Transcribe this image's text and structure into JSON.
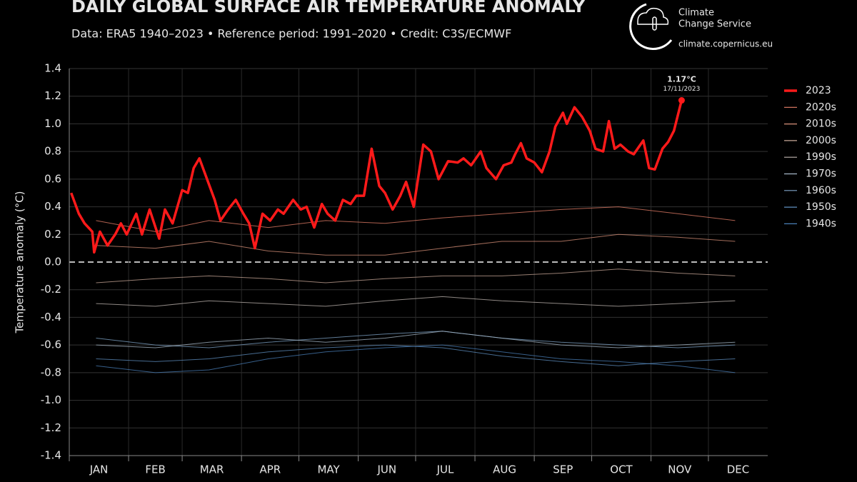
{
  "chart_data": {
    "type": "line",
    "title": "DAILY GLOBAL SURFACE AIR TEMPERATURE ANOMALY",
    "subtitle": "Data: ERA5 1940–2023 • Reference period: 1991–2020 • Credit: C3S/ECMWF",
    "ylabel": "Temperature anomaly (°C)",
    "brand": [
      "Climate",
      "Change Service"
    ],
    "brand_url": "climate.copernicus.eu",
    "xlim": [
      1,
      366
    ],
    "xticks": [
      {
        "value": 1,
        "label": "JAN"
      },
      {
        "value": 32,
        "label": "FEB"
      },
      {
        "value": 60,
        "label": "MAR"
      },
      {
        "value": 91,
        "label": "APR"
      },
      {
        "value": 121,
        "label": "MAY"
      },
      {
        "value": 152,
        "label": "JUN"
      },
      {
        "value": 182,
        "label": "JUL"
      },
      {
        "value": 213,
        "label": "AUG"
      },
      {
        "value": 244,
        "label": "SEP"
      },
      {
        "value": 274,
        "label": "OCT"
      },
      {
        "value": 305,
        "label": "NOV"
      },
      {
        "value": 335,
        "label": "DEC"
      }
    ],
    "ylim": [
      -1.4,
      1.4
    ],
    "yticks": [
      1.4,
      1.2,
      {
        "value": 1,
        "label": "1.0"
      },
      0.8,
      0.6,
      0.4,
      0.2,
      {
        "value": 0,
        "label": "0.0"
      },
      -0.2,
      -0.4,
      -0.6,
      -0.8,
      {
        "value": -1,
        "label": "-1.0"
      },
      -1.2,
      -1.4
    ],
    "grid": true,
    "zero_line": true,
    "legend": "right",
    "annotation": {
      "text": "1.17°C",
      "date": "17/11/2023"
    },
    "series": [
      {
        "name": "2023",
        "color": "#ff1a1a",
        "width": 3.5,
        "x": [
          2,
          6,
          9,
          13,
          14,
          17,
          21,
          25,
          28,
          31,
          36,
          39,
          43,
          48,
          51,
          55,
          60,
          63,
          66,
          69,
          73,
          77,
          80,
          84,
          88,
          92,
          95,
          98,
          102,
          106,
          110,
          113,
          118,
          122,
          125,
          129,
          133,
          136,
          140,
          144,
          148,
          151,
          155,
          159,
          163,
          166,
          170,
          174,
          177,
          181,
          186,
          190,
          194,
          199,
          204,
          207,
          211,
          216,
          219,
          224,
          228,
          232,
          234,
          237,
          240,
          244,
          248,
          252,
          255,
          259,
          261,
          265,
          269,
          273,
          276,
          280,
          283,
          286,
          289,
          293,
          296,
          301,
          304,
          307,
          311,
          314,
          317,
          321
        ],
        "values": [
          0.5,
          0.35,
          0.28,
          0.22,
          0.07,
          0.22,
          0.12,
          0.2,
          0.28,
          0.2,
          0.35,
          0.2,
          0.38,
          0.17,
          0.38,
          0.28,
          0.52,
          0.5,
          0.68,
          0.75,
          0.6,
          0.45,
          0.3,
          0.38,
          0.45,
          0.35,
          0.28,
          0.1,
          0.35,
          0.3,
          0.38,
          0.35,
          0.45,
          0.38,
          0.4,
          0.25,
          0.42,
          0.35,
          0.3,
          0.45,
          0.42,
          0.48,
          0.48,
          0.82,
          0.55,
          0.5,
          0.38,
          0.48,
          0.58,
          0.4,
          0.85,
          0.8,
          0.6,
          0.73,
          0.72,
          0.75,
          0.7,
          0.8,
          0.68,
          0.6,
          0.7,
          0.72,
          0.78,
          0.86,
          0.75,
          0.72,
          0.65,
          0.8,
          0.98,
          1.08,
          1.0,
          1.12,
          1.05,
          0.95,
          0.82,
          0.8,
          1.02,
          0.82,
          0.85,
          0.8,
          0.78,
          0.88,
          0.68,
          0.67,
          0.82,
          0.87,
          0.95,
          1.17
        ]
      },
      {
        "name": "2020s",
        "color": "#e8806a",
        "width": 1,
        "x": [
          15,
          46,
          74,
          105,
          135,
          166,
          196,
          227,
          258,
          288,
          319,
          349
        ],
        "values": [
          0.3,
          0.22,
          0.3,
          0.25,
          0.3,
          0.28,
          0.32,
          0.35,
          0.38,
          0.4,
          0.35,
          0.3
        ]
      },
      {
        "name": "2010s",
        "color": "#d9917a",
        "width": 1,
        "x": [
          15,
          46,
          74,
          105,
          135,
          166,
          196,
          227,
          258,
          288,
          319,
          349
        ],
        "values": [
          0.12,
          0.1,
          0.15,
          0.08,
          0.05,
          0.05,
          0.1,
          0.15,
          0.15,
          0.2,
          0.18,
          0.15
        ]
      },
      {
        "name": "2000s",
        "color": "#c9a898",
        "width": 1,
        "x": [
          15,
          46,
          74,
          105,
          135,
          166,
          196,
          227,
          258,
          288,
          319,
          349
        ],
        "values": [
          -0.15,
          -0.12,
          -0.1,
          -0.12,
          -0.15,
          -0.12,
          -0.1,
          -0.1,
          -0.08,
          -0.05,
          -0.08,
          -0.1
        ]
      },
      {
        "name": "1990s",
        "color": "#bfb5b0",
        "width": 1,
        "x": [
          15,
          46,
          74,
          105,
          135,
          166,
          196,
          227,
          258,
          288,
          319,
          349
        ],
        "values": [
          -0.3,
          -0.32,
          -0.28,
          -0.3,
          -0.32,
          -0.28,
          -0.25,
          -0.28,
          -0.3,
          -0.32,
          -0.3,
          -0.28
        ]
      },
      {
        "name": "1970s",
        "color": "#a7b8c8",
        "width": 1,
        "x": [
          15,
          46,
          74,
          105,
          135,
          166,
          196,
          227,
          258,
          288,
          319,
          349
        ],
        "values": [
          -0.6,
          -0.62,
          -0.58,
          -0.55,
          -0.58,
          -0.55,
          -0.5,
          -0.55,
          -0.6,
          -0.62,
          -0.6,
          -0.58
        ]
      },
      {
        "name": "1960s",
        "color": "#7fa4c8",
        "width": 1,
        "x": [
          15,
          46,
          74,
          105,
          135,
          166,
          196,
          227,
          258,
          288,
          319,
          349
        ],
        "values": [
          -0.55,
          -0.6,
          -0.62,
          -0.58,
          -0.55,
          -0.52,
          -0.5,
          -0.55,
          -0.58,
          -0.6,
          -0.62,
          -0.6
        ]
      },
      {
        "name": "1950s",
        "color": "#5f8fc0",
        "width": 1,
        "x": [
          15,
          46,
          74,
          105,
          135,
          166,
          196,
          227,
          258,
          288,
          319,
          349
        ],
        "values": [
          -0.7,
          -0.72,
          -0.7,
          -0.65,
          -0.62,
          -0.6,
          -0.62,
          -0.68,
          -0.72,
          -0.75,
          -0.72,
          -0.7
        ]
      },
      {
        "name": "1940s",
        "color": "#4a7fb8",
        "width": 1,
        "x": [
          15,
          46,
          74,
          105,
          135,
          166,
          196,
          227,
          258,
          288,
          319,
          349
        ],
        "values": [
          -0.75,
          -0.8,
          -0.78,
          -0.7,
          -0.65,
          -0.62,
          -0.6,
          -0.65,
          -0.7,
          -0.72,
          -0.75,
          -0.8
        ]
      }
    ]
  }
}
